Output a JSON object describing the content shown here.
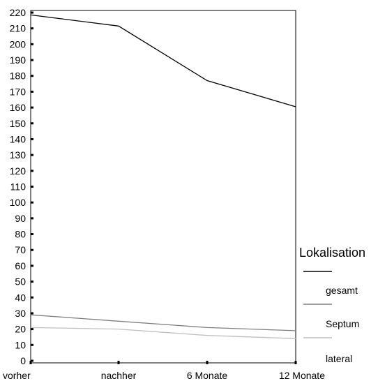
{
  "chart_data": {
    "type": "line",
    "categories": [
      "vorher",
      "nachher",
      "6 Monate",
      "12 Monate"
    ],
    "y_ticks": [
      0,
      10,
      20,
      30,
      40,
      50,
      60,
      70,
      80,
      90,
      100,
      110,
      120,
      130,
      140,
      150,
      160,
      170,
      180,
      190,
      200,
      210,
      220
    ],
    "ylim": [
      0,
      220
    ],
    "grid": false,
    "legend": {
      "title": "Lokalisation",
      "placement": "right",
      "entries": [
        "gesamt",
        "Septum",
        "lateral"
      ]
    },
    "series": [
      {
        "name": "gesamt",
        "color": "#000000",
        "values": [
          218.5,
          211.5,
          177,
          160.5
        ]
      },
      {
        "name": "Septum",
        "color": "#7f7f7f",
        "values": [
          29,
          25,
          21,
          19
        ]
      },
      {
        "name": "lateral",
        "color": "#bfbfbf",
        "values": [
          21,
          20,
          16,
          14
        ]
      }
    ]
  }
}
